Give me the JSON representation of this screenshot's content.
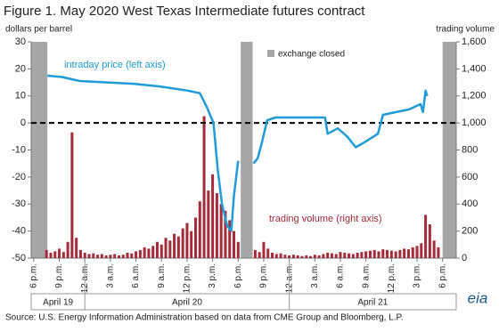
{
  "chart_data": {
    "type": "line-bar",
    "title": "Figure 1. May 2020 West Texas Intermediate futures contract",
    "ylabel": "dollars per barrel",
    "y2label": "trading volume",
    "xlim": [
      -0.3,
      49.6
    ],
    "xticks": [
      {
        "value": 0,
        "label": "6 p.m."
      },
      {
        "value": 3,
        "label": "9 p.m."
      },
      {
        "value": 6,
        "label": "12 a.m."
      },
      {
        "value": 9,
        "label": "3 a.m."
      },
      {
        "value": 12,
        "label": "6 a.m."
      },
      {
        "value": 15,
        "label": "9 a.m."
      },
      {
        "value": 18,
        "label": "12 p.m."
      },
      {
        "value": 21,
        "label": "3 p.m."
      },
      {
        "value": 24,
        "label": "6 p.m."
      },
      {
        "value": 27,
        "label": "9 p.m."
      },
      {
        "value": 30,
        "label": "12 a.m."
      },
      {
        "value": 33,
        "label": "3 a.m."
      },
      {
        "value": 36,
        "label": "6 a.m."
      },
      {
        "value": 39,
        "label": "9 a.m."
      },
      {
        "value": 42,
        "label": "12 p.m."
      },
      {
        "value": 45,
        "label": "3 p.m."
      },
      {
        "value": 48,
        "label": "6 p.m."
      }
    ],
    "days": [
      "April 19",
      "April 20",
      "April 21"
    ],
    "ylim": [
      -50,
      30
    ],
    "yticks": [
      -50,
      -40,
      -30,
      -20,
      -10,
      0,
      10,
      20,
      30
    ],
    "y2lim": [
      0,
      1600
    ],
    "y2ticks": [
      0,
      200,
      400,
      600,
      800,
      {
        "value": 1000,
        "label": "1,000"
      },
      {
        "value": 1200,
        "label": "1,200"
      },
      {
        "value": 1400,
        "label": "1,400"
      },
      {
        "value": 1600,
        "label": "1,600"
      }
    ],
    "hline": 0,
    "closed": {
      "label": "exchange closed",
      "color": "#a6a6a6",
      "ranges": [
        [
          -0.3,
          1.6
        ],
        [
          24.3,
          25.7
        ],
        [
          48,
          49.6
        ]
      ]
    },
    "series": [
      {
        "name": "intraday price (left axis)",
        "color": "#1f9bd7",
        "kind": "line",
        "x": [
          1.6,
          3.3,
          5.4,
          8.6,
          11.7,
          14.8,
          18,
          19.5,
          20.3,
          20.7,
          21.1,
          21.6,
          22.1,
          22.7,
          23.2,
          23.5,
          24.0,
          25,
          25.8,
          26.3,
          26.8,
          27.4,
          28.4,
          30.5,
          34.2,
          34.5,
          35.7,
          36.8,
          37.8,
          38.9,
          40.4,
          41,
          42.5,
          44.1,
          45.4,
          45.7,
          46,
          46.2
        ],
        "values": [
          17.5,
          17,
          15.5,
          15,
          14.5,
          13.5,
          12,
          11,
          6,
          3,
          0,
          -17,
          -30,
          -38,
          -40,
          -27,
          -14,
          null,
          -15,
          -13,
          -7,
          1,
          2,
          2,
          2,
          -4,
          -2,
          -5,
          -9,
          -7,
          -4,
          3,
          4,
          5,
          7,
          4,
          12,
          10
        ]
      },
      {
        "name": "trading volume  (right axis)",
        "color": "#a52a3a",
        "kind": "bar",
        "axis": "y2",
        "x": [
          1.5,
          2,
          2.5,
          3,
          3.5,
          4,
          4.5,
          5,
          5.5,
          6,
          6.5,
          7,
          7.5,
          8,
          8.5,
          9,
          9.5,
          10,
          10.5,
          11,
          11.5,
          12,
          12.5,
          13,
          13.5,
          14,
          14.5,
          15,
          15.5,
          16,
          16.5,
          17,
          17.5,
          18,
          18.5,
          19,
          19.5,
          20,
          20.5,
          21,
          21.5,
          22,
          22.5,
          23,
          23.5,
          24,
          26,
          26.5,
          27,
          27.5,
          28,
          28.5,
          29,
          29.5,
          30,
          30.5,
          31,
          31.5,
          32,
          32.5,
          33,
          33.5,
          34,
          34.5,
          35,
          35.5,
          36,
          36.5,
          37,
          37.5,
          38,
          38.5,
          39,
          39.5,
          40,
          40.5,
          41,
          41.5,
          42,
          42.5,
          43,
          43.5,
          44,
          44.5,
          45,
          45.5,
          46,
          46.5,
          47,
          47.5
        ],
        "values": [
          60,
          40,
          50,
          70,
          45,
          120,
          930,
          150,
          60,
          40,
          30,
          35,
          25,
          30,
          20,
          25,
          30,
          20,
          25,
          40,
          35,
          50,
          60,
          80,
          70,
          90,
          120,
          100,
          150,
          130,
          180,
          160,
          220,
          260,
          200,
          300,
          420,
          1050,
          500,
          620,
          480,
          400,
          350,
          280,
          200,
          120,
          60,
          45,
          120,
          70,
          40,
          30,
          35,
          25,
          20,
          25,
          20,
          15,
          20,
          15,
          25,
          20,
          30,
          40,
          35,
          30,
          45,
          40,
          35,
          30,
          40,
          45,
          50,
          55,
          60,
          50,
          65,
          60,
          55,
          50,
          60,
          70,
          65,
          80,
          90,
          110,
          320,
          250,
          130,
          80
        ]
      }
    ],
    "source": "Source: U.S. Energy Information Administration based on data from CME Group and Bloomberg, L.P.",
    "logo": "eia"
  }
}
